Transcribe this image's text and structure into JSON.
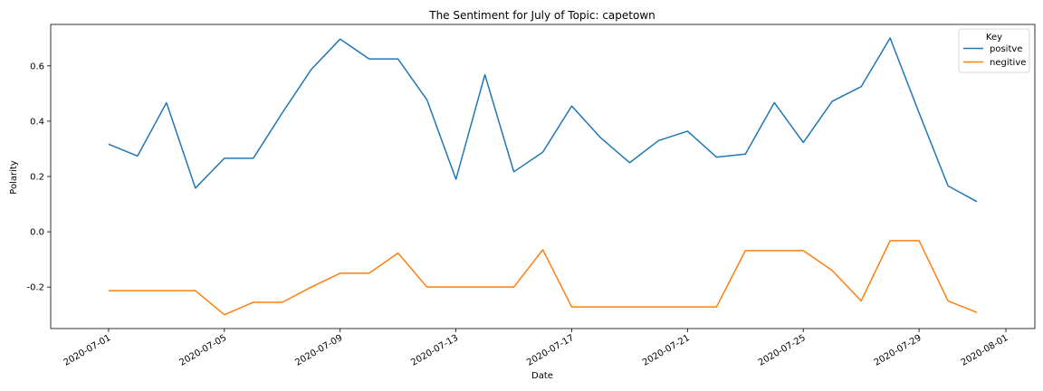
{
  "chart_data": {
    "type": "line",
    "title": "The Sentiment for July of Topic: capetown",
    "xlabel": "Date",
    "ylabel": "Polarity",
    "x": [
      "2020-07-01",
      "2020-07-02",
      "2020-07-03",
      "2020-07-04",
      "2020-07-05",
      "2020-07-06",
      "2020-07-07",
      "2020-07-08",
      "2020-07-09",
      "2020-07-10",
      "2020-07-11",
      "2020-07-12",
      "2020-07-13",
      "2020-07-14",
      "2020-07-15",
      "2020-07-16",
      "2020-07-17",
      "2020-07-18",
      "2020-07-19",
      "2020-07-20",
      "2020-07-21",
      "2020-07-22",
      "2020-07-23",
      "2020-07-24",
      "2020-07-25",
      "2020-07-26",
      "2020-07-27",
      "2020-07-28",
      "2020-07-29",
      "2020-07-30",
      "2020-07-31"
    ],
    "xticks": [
      "2020-07-01",
      "2020-07-05",
      "2020-07-09",
      "2020-07-13",
      "2020-07-17",
      "2020-07-21",
      "2020-07-25",
      "2020-07-29",
      "2020-08-01"
    ],
    "yticks": [
      "-0.2",
      "0.0",
      "0.2",
      "0.4",
      "0.6"
    ],
    "xlim": [
      "2020-06-29",
      "2020-08-02"
    ],
    "ylim": [
      -0.35,
      0.75
    ],
    "grid": false,
    "legend": {
      "title": "Key",
      "position": "top-right"
    },
    "series": [
      {
        "name": "positve",
        "color": "#1f77b4",
        "values": [
          0.317,
          0.274,
          0.467,
          0.158,
          0.266,
          0.266,
          0.43,
          0.587,
          0.697,
          0.625,
          0.625,
          0.477,
          0.19,
          0.568,
          0.217,
          0.288,
          0.455,
          0.34,
          0.25,
          0.33,
          0.364,
          0.27,
          0.281,
          0.467,
          0.323,
          0.472,
          0.525,
          0.701,
          0.43,
          0.166,
          0.109
        ]
      },
      {
        "name": "negitive",
        "color": "#ff7f0e",
        "values": [
          -0.213,
          -0.213,
          -0.213,
          -0.213,
          -0.3,
          -0.255,
          -0.255,
          -0.2,
          -0.15,
          -0.15,
          -0.077,
          -0.2,
          -0.2,
          -0.2,
          -0.2,
          -0.065,
          -0.272,
          -0.272,
          -0.272,
          -0.272,
          -0.272,
          -0.272,
          -0.068,
          -0.068,
          -0.068,
          -0.14,
          -0.25,
          -0.032,
          -0.032,
          -0.25,
          -0.292
        ]
      }
    ]
  }
}
